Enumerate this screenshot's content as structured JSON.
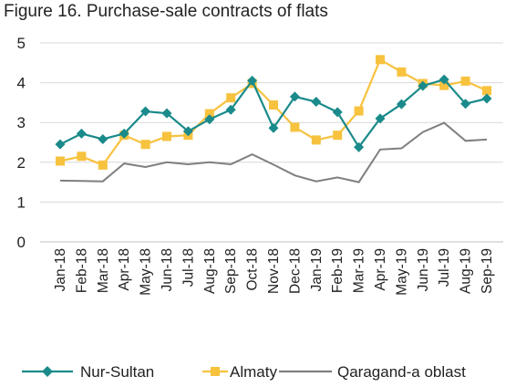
{
  "chart_data": {
    "type": "line",
    "title": "Figure 16. Purchase-sale contracts of flats",
    "xlabel": "",
    "ylabel": "",
    "ylim": [
      0,
      5
    ],
    "yticks": [
      0,
      1,
      2,
      3,
      4,
      5
    ],
    "grid": "horizontal",
    "legend": "bottom",
    "categories": [
      "Jan-18",
      "Feb-18",
      "Mar-18",
      "Apr-18",
      "May-18",
      "Jun-18",
      "Jul-18",
      "Aug-18",
      "Sep-18",
      "Oct-18",
      "Nov-18",
      "Dec-18",
      "Jan-19",
      "Feb-19",
      "Mar-19",
      "Apr-19",
      "May-19",
      "Jun-19",
      "Jul-19",
      "Aug-19",
      "Sep-19"
    ],
    "series": [
      {
        "name": "Nur-Sultan",
        "color": "#1a8a8a",
        "marker": "diamond",
        "values": [
          2.45,
          2.72,
          2.58,
          2.72,
          3.28,
          3.23,
          2.78,
          3.08,
          3.32,
          4.05,
          2.86,
          3.65,
          3.52,
          3.26,
          2.38,
          3.1,
          3.46,
          3.92,
          4.08,
          3.47,
          3.6
        ]
      },
      {
        "name": "Almaty",
        "color": "#f7c23e",
        "marker": "square",
        "values": [
          2.03,
          2.15,
          1.93,
          2.68,
          2.45,
          2.65,
          2.68,
          3.22,
          3.62,
          3.98,
          3.44,
          2.88,
          2.56,
          2.68,
          3.29,
          4.58,
          4.27,
          3.98,
          3.93,
          4.04,
          3.8
        ]
      },
      {
        "name": "Qaragand-a oblast",
        "color": "#7f7f7f",
        "marker": "none",
        "values": [
          1.54,
          1.53,
          1.52,
          1.97,
          1.88,
          2.0,
          1.95,
          2.0,
          1.95,
          2.2,
          1.94,
          1.67,
          1.52,
          1.62,
          1.5,
          2.32,
          2.35,
          2.76,
          2.99,
          2.54,
          2.57
        ]
      }
    ]
  }
}
